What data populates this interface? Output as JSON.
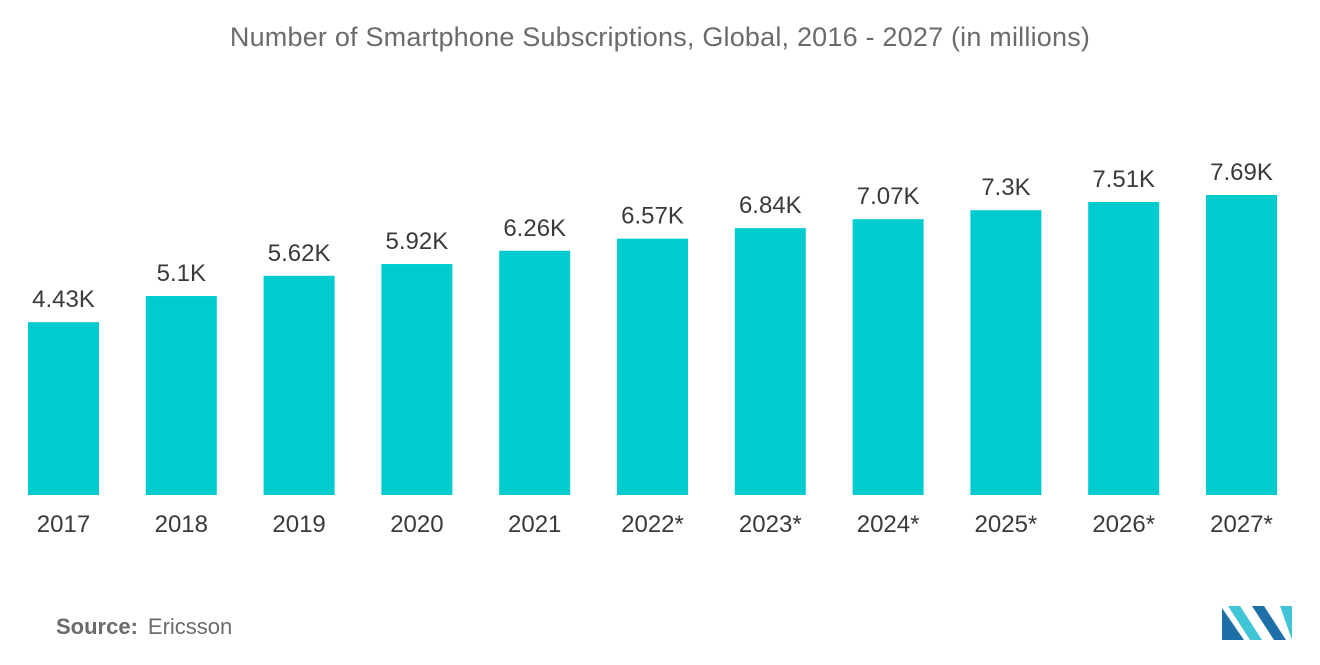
{
  "title": "Number of Smartphone Subscriptions, Global, 2016 - 2027 (in millions)",
  "source": {
    "label": "Source:",
    "value": "Ericsson"
  },
  "logo_icon": "mordor-intelligence-logo",
  "colors": {
    "bar": "#00ccd0",
    "text": "#3a3a3a",
    "title": "#6b6b6b",
    "logo_dark": "#1e6fa8",
    "logo_light": "#3fc5d6"
  },
  "chart_data": {
    "type": "bar",
    "categories": [
      "2017",
      "2018",
      "2019",
      "2020",
      "2021",
      "2022*",
      "2023*",
      "2024*",
      "2025*",
      "2026*",
      "2027*"
    ],
    "values": [
      4.43,
      5.1,
      5.62,
      5.92,
      6.26,
      6.57,
      6.84,
      7.07,
      7.3,
      7.51,
      7.69
    ],
    "value_labels": [
      "4.43K",
      "5.1K",
      "5.62K",
      "5.92K",
      "6.26K",
      "6.57K",
      "6.84K",
      "7.07K",
      "7.3K",
      "7.51K",
      "7.69K"
    ],
    "title": "Number of Smartphone Subscriptions, Global, 2016 - 2027 (in millions)",
    "xlabel": "",
    "ylabel": "",
    "ylim": [
      0,
      7.69
    ],
    "grid": false,
    "legend": "none"
  }
}
